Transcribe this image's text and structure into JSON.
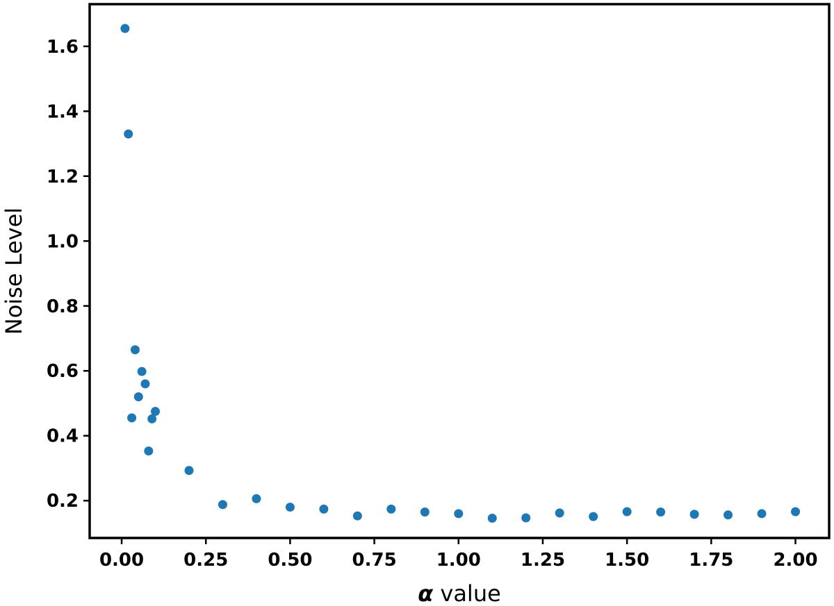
{
  "chart_data": {
    "type": "scatter",
    "title": "",
    "xlabel_symbol": "α",
    "xlabel_text": " value",
    "ylabel": "Noise Level",
    "xlim": [
      -0.095,
      2.1
    ],
    "ylim": [
      0.085,
      1.73
    ],
    "grid": false,
    "marker_color": "#1f77b4",
    "x_ticks": [
      0.0,
      0.25,
      0.5,
      0.75,
      1.0,
      1.25,
      1.5,
      1.75,
      2.0
    ],
    "x_tick_labels": [
      "0.00",
      "0.25",
      "0.50",
      "0.75",
      "1.00",
      "1.25",
      "1.50",
      "1.75",
      "2.00"
    ],
    "y_ticks": [
      0.2,
      0.4,
      0.6,
      0.8,
      1.0,
      1.2,
      1.4,
      1.6
    ],
    "y_tick_labels": [
      "0.2",
      "0.4",
      "0.6",
      "0.8",
      "1.0",
      "1.2",
      "1.4",
      "1.6"
    ],
    "points": [
      {
        "x": 0.01,
        "y": 1.655
      },
      {
        "x": 0.02,
        "y": 1.33
      },
      {
        "x": 0.03,
        "y": 0.455
      },
      {
        "x": 0.04,
        "y": 0.665
      },
      {
        "x": 0.05,
        "y": 0.52
      },
      {
        "x": 0.06,
        "y": 0.598
      },
      {
        "x": 0.07,
        "y": 0.56
      },
      {
        "x": 0.08,
        "y": 0.353
      },
      {
        "x": 0.09,
        "y": 0.452
      },
      {
        "x": 0.1,
        "y": 0.475
      },
      {
        "x": 0.2,
        "y": 0.293
      },
      {
        "x": 0.3,
        "y": 0.188
      },
      {
        "x": 0.4,
        "y": 0.206
      },
      {
        "x": 0.5,
        "y": 0.18
      },
      {
        "x": 0.6,
        "y": 0.174
      },
      {
        "x": 0.7,
        "y": 0.153
      },
      {
        "x": 0.8,
        "y": 0.174
      },
      {
        "x": 0.9,
        "y": 0.165
      },
      {
        "x": 1.0,
        "y": 0.16
      },
      {
        "x": 1.1,
        "y": 0.146
      },
      {
        "x": 1.2,
        "y": 0.147
      },
      {
        "x": 1.3,
        "y": 0.162
      },
      {
        "x": 1.4,
        "y": 0.151
      },
      {
        "x": 1.5,
        "y": 0.166
      },
      {
        "x": 1.6,
        "y": 0.165
      },
      {
        "x": 1.7,
        "y": 0.158
      },
      {
        "x": 1.8,
        "y": 0.156
      },
      {
        "x": 1.9,
        "y": 0.16
      },
      {
        "x": 2.0,
        "y": 0.166
      }
    ]
  }
}
